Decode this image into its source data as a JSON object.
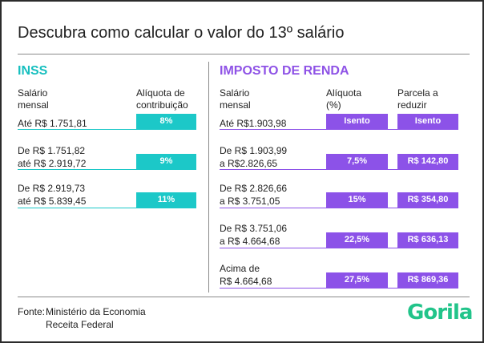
{
  "title": "Descubra como calcular o valor do 13º salário",
  "inss": {
    "title": "INSS",
    "col_salary": [
      "Salário",
      "mensal"
    ],
    "col_rate": [
      "Alíquota de",
      "contribuição"
    ],
    "rows": [
      {
        "label": [
          "Até R$ 1.751,81"
        ],
        "rate": "8%"
      },
      {
        "label": [
          "De R$ 1.751,82",
          "até R$ 2.919,72"
        ],
        "rate": "9%"
      },
      {
        "label": [
          "De R$ 2.919,73",
          "até R$ 5.839,45"
        ],
        "rate": "11%"
      }
    ]
  },
  "ir": {
    "title": "IMPOSTO DE RENDA",
    "col_salary": [
      "Salário",
      "mensal"
    ],
    "col_rate": [
      "Alíquota",
      "(%)"
    ],
    "col_deduct": [
      "Parcela a",
      "reduzir"
    ],
    "rows": [
      {
        "label": [
          "Até R$1.903,98"
        ],
        "rate": "Isento",
        "deduct": "Isento"
      },
      {
        "label": [
          "De R$ 1.903,99",
          "a R$2.826,65"
        ],
        "rate": "7,5%",
        "deduct": "R$ 142,80"
      },
      {
        "label": [
          "De R$ 2.826,66",
          "a R$ 3.751,05"
        ],
        "rate": "15%",
        "deduct": "R$ 354,80"
      },
      {
        "label": [
          "De R$ 3.751,06",
          "a R$ 4.664,68"
        ],
        "rate": "22,5%",
        "deduct": "R$ 636,13"
      },
      {
        "label": [
          "Acima de",
          "R$ 4.664,68"
        ],
        "rate": "27,5%",
        "deduct": "R$ 869,36"
      }
    ]
  },
  "footer": {
    "label": "Fonte:",
    "sources": [
      "Ministério da Economia",
      "Receita Federal"
    ]
  },
  "logo": "Gorila",
  "colors": {
    "teal": "#1cc8c8",
    "purple": "#8c52e8",
    "logo_green": "#22c48a"
  }
}
